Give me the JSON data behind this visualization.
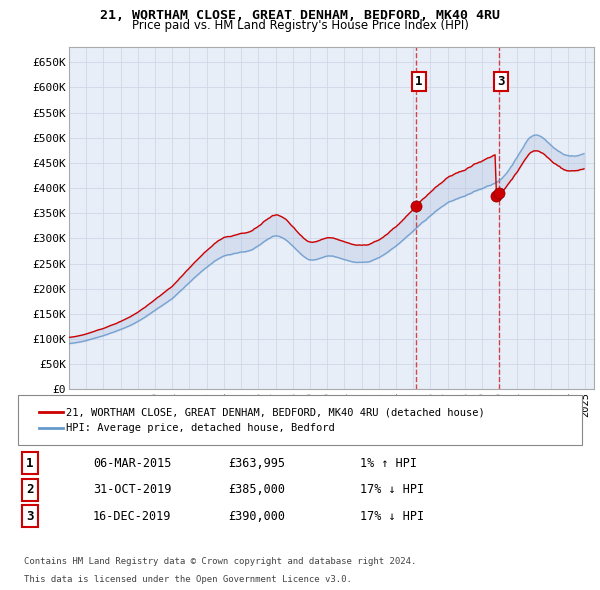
{
  "title": "21, WORTHAM CLOSE, GREAT DENHAM, BEDFORD, MK40 4RU",
  "subtitle": "Price paid vs. HM Land Registry's House Price Index (HPI)",
  "ylabel_ticks": [
    "£0",
    "£50K",
    "£100K",
    "£150K",
    "£200K",
    "£250K",
    "£300K",
    "£350K",
    "£400K",
    "£450K",
    "£500K",
    "£550K",
    "£600K",
    "£650K"
  ],
  "ylim": [
    0,
    680000
  ],
  "yticks": [
    0,
    50000,
    100000,
    150000,
    200000,
    250000,
    300000,
    350000,
    400000,
    450000,
    500000,
    550000,
    600000,
    650000
  ],
  "background_color": "#ffffff",
  "grid_color": "#d0d8e8",
  "chart_bg": "#e8eef8",
  "transaction_color": "#cc0000",
  "hpi_color": "#6699cc",
  "vline_color": "#cc0000",
  "transaction1_x": 2015.18,
  "transaction1_y": 363995,
  "transaction2_x": 2019.83,
  "transaction2_y": 385000,
  "transaction3_x": 2019.96,
  "transaction3_y": 390000,
  "legend_label1": "21, WORTHAM CLOSE, GREAT DENHAM, BEDFORD, MK40 4RU (detached house)",
  "legend_label2": "HPI: Average price, detached house, Bedford",
  "table_rows": [
    {
      "num": "1",
      "date": "06-MAR-2015",
      "price": "£363,995",
      "change": "1% ↑ HPI"
    },
    {
      "num": "2",
      "date": "31-OCT-2019",
      "price": "£385,000",
      "change": "17% ↓ HPI"
    },
    {
      "num": "3",
      "date": "16-DEC-2019",
      "price": "£390,000",
      "change": "17% ↓ HPI"
    }
  ],
  "footnote1": "Contains HM Land Registry data © Crown copyright and database right 2024.",
  "footnote2": "This data is licensed under the Open Government Licence v3.0.",
  "xmin": 1995.0,
  "xmax": 2025.5
}
